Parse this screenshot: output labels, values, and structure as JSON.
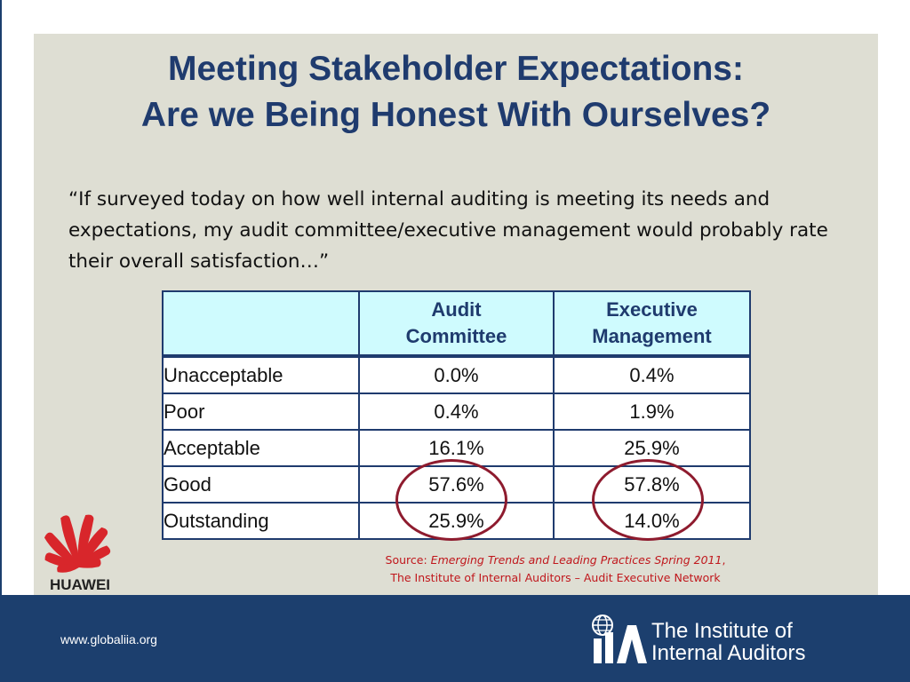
{
  "slide": {
    "title_line1": "Meeting Stakeholder Expectations:",
    "title_line2": "Are we Being Honest With Ourselves?",
    "quote": "“If surveyed today on how well internal auditing is meeting its needs and expectations, my audit committee/executive management would probably rate their overall satisfaction…”"
  },
  "table": {
    "headers": {
      "col1": "",
      "col2_line1": "Audit",
      "col2_line2": "Committee",
      "col3_line1": "Executive",
      "col3_line2": "Management"
    },
    "rows": [
      {
        "label": "Unacceptable",
        "audit_committee": "0.0%",
        "executive_management": "0.4%"
      },
      {
        "label": "Poor",
        "audit_committee": "0.4%",
        "executive_management": "1.9%"
      },
      {
        "label": "Acceptable",
        "audit_committee": "16.1%",
        "executive_management": "25.9%"
      },
      {
        "label": "Good",
        "audit_committee": "57.6%",
        "executive_management": "57.8%"
      },
      {
        "label": "Outstanding",
        "audit_committee": "25.9%",
        "executive_management": "14.0%"
      }
    ]
  },
  "source": {
    "prefix": "Source: ",
    "publication": "Emerging Trends and Leading Practices Spring 2011",
    "suffix": ",",
    "line2": "The Institute of Internal Auditors – Audit Executive Network"
  },
  "logos": {
    "huawei_wordmark": "HUAWEI",
    "iia_line1": "The Institute of",
    "iia_line2": "Internal Auditors"
  },
  "footer": {
    "url": "www.globaliia.org"
  },
  "colors": {
    "title": "#1f3b6e",
    "panel": "#deded3",
    "header_fill": "#cffbfe",
    "footer": "#1c3f6e",
    "highlight_circle": "#8e1b2e",
    "source_text": "#c0171c",
    "huawei_red": "#d8262b"
  }
}
